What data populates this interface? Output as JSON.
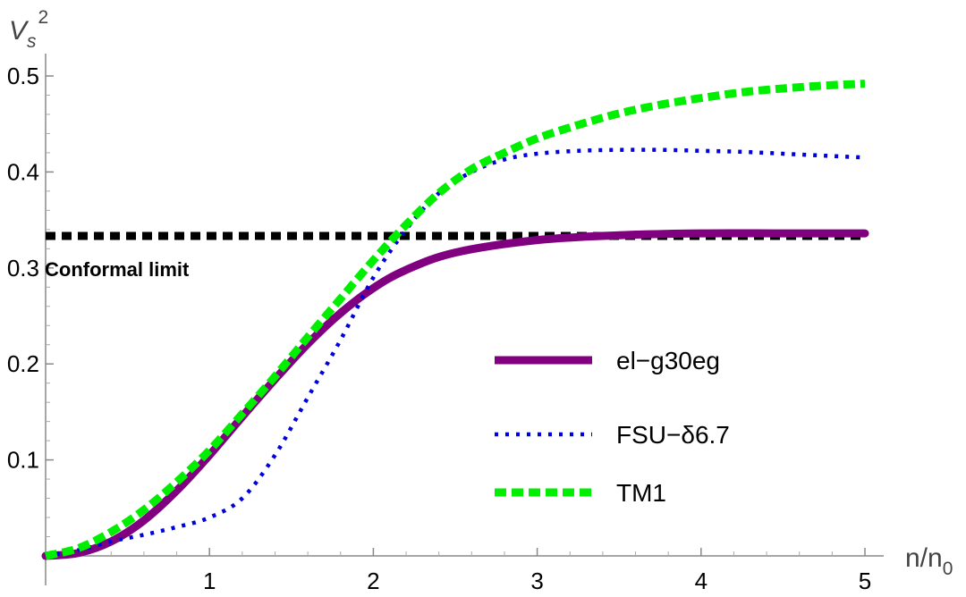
{
  "chart_data": {
    "type": "line",
    "title": "",
    "xlabel": "n/n₀",
    "ylabel": "Vₛ²",
    "xlabel_main": "n/n",
    "xlabel_sub": "0",
    "ylabel_main": "V",
    "ylabel_sub": "s",
    "ylabel_sup": "2",
    "xlim": [
      0,
      5.1
    ],
    "ylim": [
      -0.005,
      0.525
    ],
    "x_ticks": [
      1,
      2,
      3,
      4,
      5
    ],
    "x_tick_labels": [
      "1",
      "2",
      "3",
      "4",
      "5"
    ],
    "y_ticks": [
      0.1,
      0.2,
      0.3,
      0.4,
      0.5
    ],
    "y_tick_labels": [
      "0.1",
      "0.2",
      "0.3",
      "0.4",
      "0.5"
    ],
    "grid": false,
    "legend_position": "center-right",
    "series": [
      {
        "name": "el−g30eg",
        "color": "#800080",
        "style": "solid",
        "x": [
          0,
          0.2,
          0.4,
          0.6,
          0.8,
          1.0,
          1.2,
          1.4,
          1.6,
          1.8,
          2.0,
          2.2,
          2.5,
          3.0,
          3.5,
          4.0,
          4.5,
          5.0
        ],
        "y": [
          0.0,
          0.003,
          0.015,
          0.037,
          0.068,
          0.105,
          0.145,
          0.184,
          0.221,
          0.253,
          0.279,
          0.298,
          0.316,
          0.329,
          0.334,
          0.336,
          0.336,
          0.336
        ]
      },
      {
        "name": "FSU−δ6.7",
        "color": "#0000dd",
        "style": "dotted",
        "x": [
          0,
          0.2,
          0.4,
          0.6,
          0.8,
          1.0,
          1.2,
          1.4,
          1.6,
          1.8,
          2.0,
          2.2,
          2.4,
          2.6,
          2.8,
          3.0,
          3.25,
          3.5,
          3.75,
          4.0,
          4.25,
          4.5,
          4.75,
          5.0
        ],
        "y": [
          0.0,
          0.006,
          0.015,
          0.022,
          0.03,
          0.04,
          0.06,
          0.105,
          0.165,
          0.225,
          0.29,
          0.34,
          0.378,
          0.4,
          0.413,
          0.419,
          0.422,
          0.423,
          0.423,
          0.422,
          0.421,
          0.419,
          0.417,
          0.415
        ]
      },
      {
        "name": "TM1",
        "color": "#00ee00",
        "style": "dashed",
        "x": [
          0,
          0.2,
          0.4,
          0.6,
          0.8,
          1.0,
          1.2,
          1.4,
          1.6,
          1.8,
          2.0,
          2.2,
          2.4,
          2.6,
          2.8,
          3.0,
          3.25,
          3.5,
          3.75,
          4.0,
          4.25,
          4.5,
          4.75,
          5.0
        ],
        "y": [
          0.0,
          0.008,
          0.025,
          0.048,
          0.077,
          0.11,
          0.148,
          0.187,
          0.228,
          0.268,
          0.308,
          0.345,
          0.378,
          0.403,
          0.42,
          0.435,
          0.449,
          0.461,
          0.47,
          0.477,
          0.483,
          0.487,
          0.49,
          0.492
        ]
      }
    ],
    "reference_line": {
      "name": "Conformal limit",
      "y": 0.3333,
      "x_start": 0,
      "x_end": 5,
      "color": "#000000",
      "style": "dashed"
    },
    "annotations": [
      {
        "text": "Conformal limit"
      }
    ]
  }
}
